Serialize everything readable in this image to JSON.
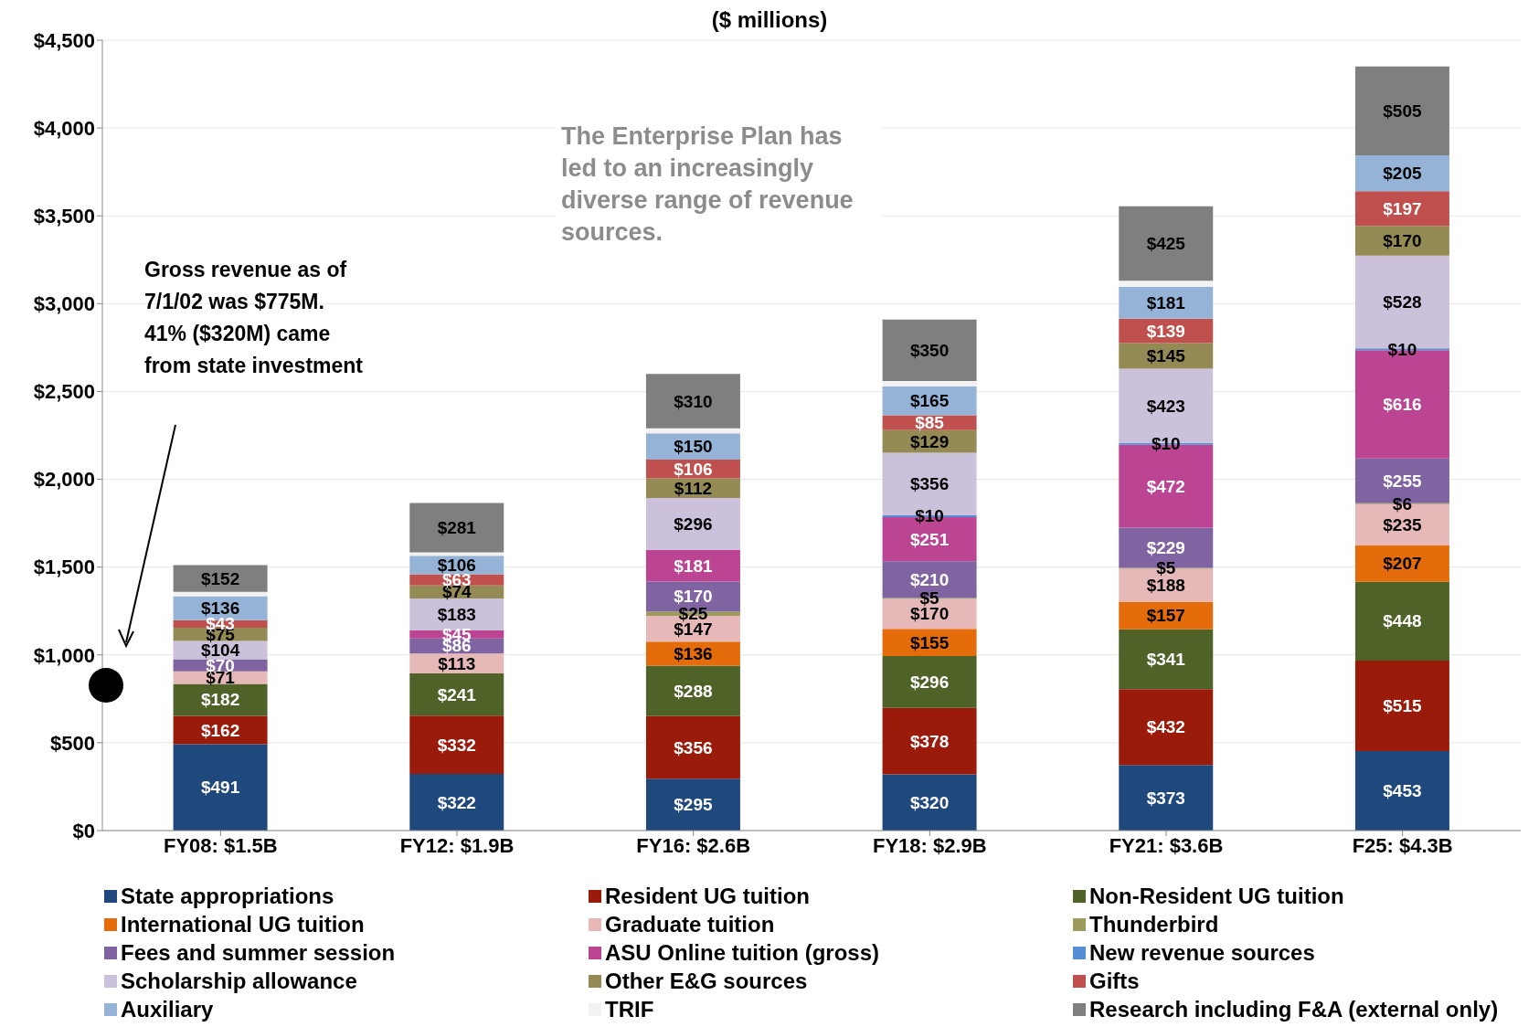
{
  "chart_data": {
    "type": "bar",
    "stacked": true,
    "title": "($ millions)",
    "categories": [
      "FY08: $1.5B",
      "FY12: $1.9B",
      "FY16: $2.6B",
      "FY18: $2.9B",
      "FY21: $3.6B",
      "F25: $4.3B"
    ],
    "ylim": [
      0,
      4500
    ],
    "yticks": [
      {
        "value": 0,
        "label": "$0"
      },
      {
        "value": 500,
        "label": "$500"
      },
      {
        "value": 1000,
        "label": "$1,000"
      },
      {
        "value": 1500,
        "label": "$1,500"
      },
      {
        "value": 2000,
        "label": "$2,000"
      },
      {
        "value": 2500,
        "label": "$2,500"
      },
      {
        "value": 3000,
        "label": "$3,000"
      },
      {
        "value": 3500,
        "label": "$3,500"
      },
      {
        "value": 4000,
        "label": "$4,000"
      },
      {
        "value": 4500,
        "label": "$4,500"
      }
    ],
    "grid": "y",
    "legend": "bottom",
    "series": [
      {
        "name": "State appropriations",
        "color": "#1f497d",
        "values": [
          491,
          322,
          295,
          320,
          373,
          453
        ],
        "value_labels": [
          "$491",
          "$322",
          "$295",
          "$320",
          "$373",
          "$453"
        ]
      },
      {
        "name": "Resident UG tuition",
        "color": "#9b1b0b",
        "values": [
          162,
          332,
          356,
          378,
          432,
          515
        ],
        "value_labels": [
          "$162",
          "$332",
          "$356",
          "$378",
          "$432",
          "$515"
        ]
      },
      {
        "name": "Non-Resident UG tuition",
        "color": "#4f6228",
        "values": [
          182,
          241,
          288,
          296,
          341,
          448
        ],
        "value_labels": [
          "$182",
          "$241",
          "$288",
          "$296",
          "$341",
          "$448"
        ]
      },
      {
        "name": "International UG tuition",
        "color": "#e46c0a",
        "values": [
          null,
          null,
          136,
          155,
          157,
          207
        ],
        "value_labels": [
          null,
          null,
          "$136",
          "$155",
          "$157",
          "$207"
        ]
      },
      {
        "name": "Graduate tuition",
        "color": "#e6b9b8",
        "values": [
          71,
          113,
          147,
          170,
          188,
          235
        ],
        "value_labels": [
          "$71",
          "$113",
          "$147",
          "$170",
          "$188",
          "$235"
        ]
      },
      {
        "name": "Thunderbird",
        "color": "#9d9a5e",
        "values": [
          null,
          null,
          25,
          5,
          5,
          6
        ],
        "value_labels": [
          null,
          null,
          "$25",
          "$5",
          "$5",
          "$6"
        ]
      },
      {
        "name": "Fees and summer session",
        "color": "#8064a2",
        "values": [
          70,
          86,
          170,
          210,
          229,
          255
        ],
        "value_labels": [
          "$70",
          "$86",
          "$170",
          "$210",
          "$229",
          "$255"
        ]
      },
      {
        "name": "ASU Online tuition (gross)",
        "color": "#bb4593",
        "values": [
          null,
          45,
          181,
          251,
          472,
          616
        ],
        "value_labels": [
          null,
          "$45",
          "$181",
          "$251",
          "$472",
          "$616"
        ]
      },
      {
        "name": "New revenue sources",
        "color": "#558ed5",
        "values": [
          null,
          null,
          null,
          10,
          10,
          10
        ],
        "value_labels": [
          null,
          null,
          null,
          "$10",
          "$10",
          "$10"
        ]
      },
      {
        "name": "Scholarship allowance",
        "color": "#ccc1da",
        "values": [
          104,
          183,
          296,
          356,
          423,
          528
        ],
        "value_labels": [
          "$104",
          "$183",
          "$296",
          "$356",
          "$423",
          "$528"
        ]
      },
      {
        "name": "Other E&G sources",
        "color": "#948a54",
        "values": [
          75,
          74,
          112,
          129,
          145,
          170
        ],
        "value_labels": [
          "$75",
          "$74",
          "$112",
          "$129",
          "$145",
          "$170"
        ]
      },
      {
        "name": "Gifts",
        "color": "#c0504d",
        "values": [
          43,
          63,
          106,
          85,
          139,
          197
        ],
        "value_labels": [
          "$43",
          "$63",
          "$106",
          "$85",
          "$139",
          "$197"
        ]
      },
      {
        "name": "Auxiliary",
        "color": "#95b3d7",
        "values": [
          136,
          106,
          150,
          165,
          181,
          205
        ],
        "value_labels": [
          "$136",
          "$106",
          "$150",
          "$165",
          "$181",
          "$205"
        ]
      },
      {
        "name": "TRIF",
        "color": "#f2f2f2",
        "values": [
          25,
          19,
          28,
          30,
          35,
          null
        ]
      },
      {
        "name": "Research including F&A (external only)",
        "color": "#7f7f7f",
        "values": [
          152,
          281,
          310,
          350,
          425,
          505
        ],
        "value_labels": [
          "$152",
          "$281",
          "$310",
          "$350",
          "$425",
          "$505"
        ]
      }
    ],
    "annotations": [
      "The Enterprise Plan has led to an increasingly diverse range of revenue sources.",
      "Gross revenue as of 7/1/02 was $775M.  41% ($320M) came from state investment"
    ]
  }
}
